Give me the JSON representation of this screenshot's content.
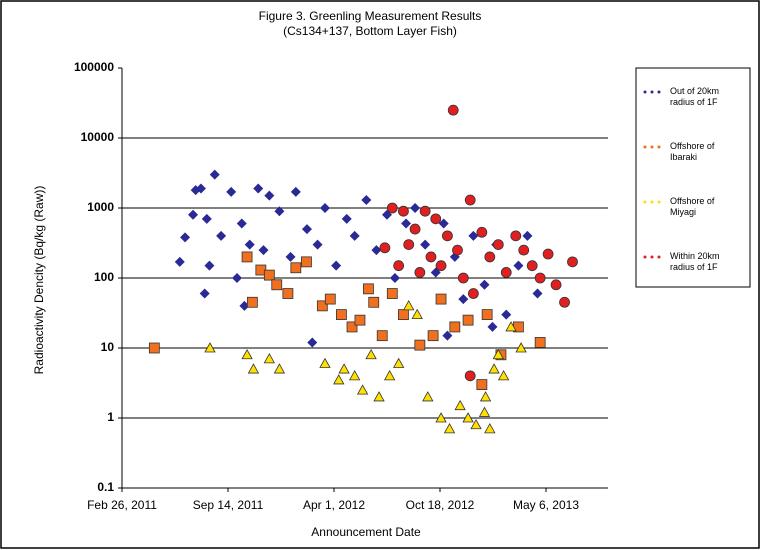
{
  "chart_data": {
    "type": "scatter",
    "title": "Figure 3. Greenling Measurement Results",
    "subtitle": "(Cs134+137, Bottom Layer Fish)",
    "x_label": "Announcement Date",
    "y_label": "Radioactivity Dencity (Bq/kg (Raw))",
    "log_y": true,
    "grid": true,
    "legend": "right",
    "xlim": [
      "2011-02-26",
      "2013-08-31"
    ],
    "xticks": [
      {
        "value": "2011-02-26",
        "label": "Feb 26, 2011"
      },
      {
        "value": "2011-09-14",
        "label": "Sep 14, 2011"
      },
      {
        "value": "2012-04-01",
        "label": "Apr 1, 2012"
      },
      {
        "value": "2012-10-18",
        "label": "Oct 18, 2012"
      },
      {
        "value": "2013-05-06",
        "label": "May 6, 2013"
      }
    ],
    "ylim": [
      0.1,
      100000
    ],
    "yticks": [
      0.1,
      1,
      10,
      100,
      1000,
      10000,
      100000
    ],
    "series": [
      {
        "name": "Out of 20km radius of 1F",
        "color": "#2a2a96",
        "marker": "diamond",
        "x": [
          "2011-06-15",
          "2011-06-25",
          "2011-07-10",
          "2011-07-15",
          "2011-07-25",
          "2011-08-05",
          "2011-08-20",
          "2011-08-10",
          "2011-09-01",
          "2011-09-20",
          "2011-10-01",
          "2011-10-10",
          "2011-10-25",
          "2011-11-10",
          "2011-11-20",
          "2011-12-01",
          "2011-12-20",
          "2012-01-10",
          "2012-01-20",
          "2012-02-10",
          "2012-03-01",
          "2012-03-15",
          "2012-04-05",
          "2012-04-25",
          "2012-05-10",
          "2012-06-01",
          "2012-06-20",
          "2012-07-10",
          "2012-07-25",
          "2012-08-15",
          "2012-09-01",
          "2012-09-20",
          "2012-10-10",
          "2012-10-25",
          "2012-11-15",
          "2012-12-01",
          "2012-12-20",
          "2013-01-10",
          "2013-02-01",
          "2013-02-20",
          "2013-03-15",
          "2013-04-01",
          "2013-04-20",
          "2011-08-01",
          "2011-10-15",
          "2012-02-20",
          "2012-11-01",
          "2013-01-25"
        ],
        "values": [
          170,
          380,
          800,
          1800,
          1900,
          700,
          3000,
          150,
          400,
          1700,
          100,
          600,
          300,
          1900,
          250,
          1500,
          900,
          200,
          1700,
          500,
          300,
          1000,
          150,
          700,
          400,
          1300,
          250,
          800,
          100,
          600,
          1000,
          300,
          120,
          600,
          200,
          50,
          400,
          80,
          300,
          30,
          150,
          400,
          60,
          60,
          40,
          12,
          15,
          20
        ]
      },
      {
        "name": "Offshore of Ibaraki",
        "color": "#f07020",
        "marker": "square",
        "x": [
          "2011-04-28",
          "2011-10-20",
          "2011-10-30",
          "2011-11-15",
          "2011-12-01",
          "2011-12-15",
          "2012-01-05",
          "2012-01-20",
          "2012-02-09",
          "2012-03-10",
          "2012-03-25",
          "2012-04-15",
          "2012-05-05",
          "2012-05-20",
          "2012-06-05",
          "2012-06-15",
          "2012-07-01",
          "2012-07-20",
          "2012-08-10",
          "2012-09-10",
          "2012-10-05",
          "2012-10-20",
          "2012-11-15",
          "2012-12-10",
          "2013-01-05",
          "2013-01-15",
          "2013-02-10",
          "2013-03-15",
          "2013-04-25"
        ],
        "values": [
          10,
          200,
          45,
          130,
          110,
          80,
          60,
          140,
          170,
          40,
          50,
          30,
          20,
          25,
          70,
          45,
          15,
          60,
          30,
          11,
          15,
          50,
          20,
          25,
          3,
          30,
          8,
          20,
          12
        ]
      },
      {
        "name": "Offshore of Miyagi",
        "color": "#ffe000",
        "marker": "triangle",
        "x": [
          "2011-08-11",
          "2011-10-20",
          "2011-11-01",
          "2011-12-01",
          "2011-12-20",
          "2012-03-15",
          "2012-04-10",
          "2012-04-20",
          "2012-05-10",
          "2012-05-25",
          "2012-06-10",
          "2012-06-25",
          "2012-07-15",
          "2012-08-01",
          "2012-08-20",
          "2012-09-05",
          "2012-09-25",
          "2012-10-20",
          "2012-11-05",
          "2012-11-25",
          "2012-12-10",
          "2012-12-25",
          "2013-01-10",
          "2013-01-12",
          "2013-01-20",
          "2013-01-28",
          "2013-02-05",
          "2013-02-15",
          "2013-03-01",
          "2013-03-20"
        ],
        "values": [
          10,
          8,
          5,
          7,
          5,
          6,
          3.5,
          5,
          4,
          2.5,
          8,
          2,
          4,
          6,
          40,
          30,
          2,
          1,
          0.7,
          1.5,
          1,
          0.8,
          1.2,
          2,
          0.7,
          5,
          8,
          4,
          20,
          10
        ]
      },
      {
        "name": "Within 20km radius of 1F",
        "color": "#e02020",
        "marker": "circle",
        "x": [
          "2012-07-06",
          "2012-07-20",
          "2012-08-01",
          "2012-08-10",
          "2012-08-20",
          "2012-09-01",
          "2012-09-10",
          "2012-09-20",
          "2012-10-01",
          "2012-10-10",
          "2012-10-20",
          "2012-11-01",
          "2012-11-12",
          "2012-11-20",
          "2012-12-01",
          "2012-12-14",
          "2012-12-14",
          "2012-12-20",
          "2013-01-05",
          "2013-01-20",
          "2013-02-05",
          "2013-02-20",
          "2013-03-10",
          "2013-03-25",
          "2013-04-10",
          "2013-04-25",
          "2013-05-10",
          "2013-05-25",
          "2013-06-10",
          "2013-06-25"
        ],
        "values": [
          270,
          1000,
          150,
          900,
          300,
          500,
          120,
          900,
          200,
          700,
          150,
          400,
          25000,
          250,
          100,
          1300,
          4,
          60,
          450,
          200,
          300,
          120,
          400,
          250,
          150,
          100,
          220,
          80,
          45,
          170
        ]
      }
    ]
  }
}
